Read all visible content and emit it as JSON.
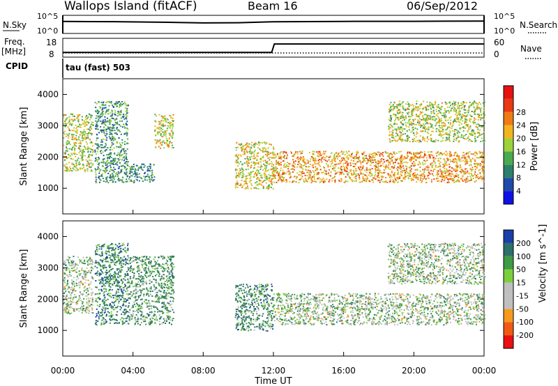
{
  "header": {
    "station": "Wallops Island (fitACF)",
    "beam": "Beam 16",
    "date": "06/Sep/2012"
  },
  "noise_panel": {
    "left_label": "N.Sky",
    "right_label": "N.Search",
    "left_ticks": [
      "10^5",
      "10^0"
    ],
    "right_ticks": [
      "10^5",
      "10^0"
    ]
  },
  "freq_panel": {
    "label_line1": "Freq.",
    "label_line2": "[MHz]",
    "cpid_label": "CPID",
    "left_ticks": [
      "18",
      "8"
    ],
    "right_label": "Nave",
    "right_ticks": [
      "60",
      "0"
    ],
    "cpid_name": "tau (fast) 503"
  },
  "x_axis": {
    "label": "Time UT",
    "ticks": [
      "00:00",
      "04:00",
      "08:00",
      "12:00",
      "16:00",
      "20:00",
      "00:00"
    ]
  },
  "colors": {
    "power_scale": [
      "#1010e6",
      "#1f4aa8",
      "#2e7f6a",
      "#4aaa50",
      "#9cd23a",
      "#f2b41e",
      "#f07a16",
      "#e83a12",
      "#e81010"
    ],
    "velocity_scale": [
      "#e81010",
      "#f05a14",
      "#f49a1c",
      "#bfbfbf",
      "#bfbfbf",
      "#7ccf3c",
      "#3f9a46",
      "#2d6f6a",
      "#1a3fa8"
    ]
  },
  "chart_data": [
    {
      "type": "line",
      "title": "N.Sky / N.Search",
      "x_range_hours": [
        0,
        24
      ],
      "y_scale": "log",
      "series": [
        {
          "name": "N.Sky",
          "x": [
            0,
            3,
            6,
            8,
            10,
            12,
            16,
            20,
            24
          ],
          "values": [
            2000,
            1800,
            1200,
            800,
            900,
            1700,
            2100,
            2200,
            2600
          ]
        }
      ]
    },
    {
      "type": "line",
      "title": "Freq. / Nave",
      "y_range": [
        8,
        18
      ],
      "series": [
        {
          "name": "Freq.",
          "x": [
            0,
            0.1,
            11.9,
            12.05,
            24
          ],
          "values": [
            10.5,
            10.5,
            10.5,
            15.0,
            15.0
          ]
        }
      ]
    },
    {
      "type": "heatmap",
      "ylabel": "Slant Range [km]",
      "xlabel": "Time UT",
      "yticks": [
        1000,
        2000,
        3000,
        4000
      ],
      "ylim": [
        180,
        4500
      ],
      "x_range_hours": [
        0,
        24
      ],
      "colorbar": {
        "label": "Power [dB]",
        "ticks": [
          4,
          8,
          12,
          16,
          20,
          24,
          28
        ]
      },
      "echo_regions": [
        {
          "t": [
            0.0,
            1.7
          ],
          "range_km": [
            1550,
            3400
          ],
          "power_db": 18
        },
        {
          "t": [
            1.8,
            3.7
          ],
          "range_km": [
            1200,
            3800
          ],
          "power_db": 12
        },
        {
          "t": [
            3.7,
            5.2
          ],
          "range_km": [
            1200,
            1800
          ],
          "power_db": 12
        },
        {
          "t": [
            5.2,
            6.3
          ],
          "range_km": [
            2300,
            3400
          ],
          "power_db": 20
        },
        {
          "t": [
            9.8,
            12.0
          ],
          "range_km": [
            1000,
            2500
          ],
          "power_db": 20
        },
        {
          "t": [
            12.0,
            24.0
          ],
          "range_km": [
            1200,
            2200
          ],
          "power_db": 24
        },
        {
          "t": [
            18.5,
            24.0
          ],
          "range_km": [
            2500,
            3800
          ],
          "power_db": 18
        }
      ]
    },
    {
      "type": "heatmap",
      "ylabel": "Slant Range [km]",
      "xlabel": "Time UT",
      "yticks": [
        1000,
        2000,
        3000,
        4000
      ],
      "ylim": [
        180,
        4500
      ],
      "x_range_hours": [
        0,
        24
      ],
      "colorbar": {
        "label": "Velocity [m s^-1]",
        "ticks": [
          200,
          100,
          50,
          15,
          -15,
          -50,
          -100,
          -200
        ]
      },
      "echo_regions": [
        {
          "t": [
            0.0,
            1.7
          ],
          "range_km": [
            1550,
            3400
          ],
          "velocity": 0
        },
        {
          "t": [
            1.8,
            3.7
          ],
          "range_km": [
            1200,
            3800
          ],
          "velocity": 60
        },
        {
          "t": [
            3.7,
            6.3
          ],
          "range_km": [
            1200,
            3400
          ],
          "velocity": 40
        },
        {
          "t": [
            9.8,
            12.0
          ],
          "range_km": [
            1000,
            2500
          ],
          "velocity": 50
        },
        {
          "t": [
            12.0,
            24.0
          ],
          "range_km": [
            1200,
            2200
          ],
          "velocity": 0
        },
        {
          "t": [
            18.5,
            24.0
          ],
          "range_km": [
            2500,
            3800
          ],
          "velocity": 0
        }
      ]
    }
  ]
}
